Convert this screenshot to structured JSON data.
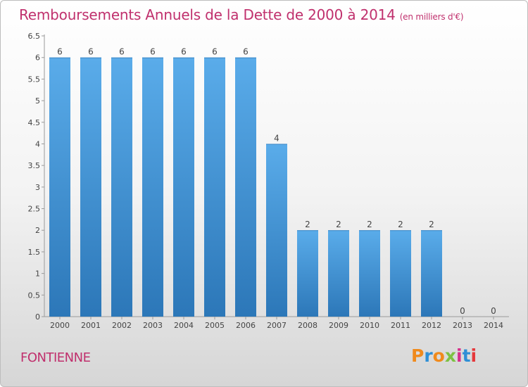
{
  "header": {
    "title": "Remboursements Annuels de la Dette de 2000 à 2014",
    "unit": "(en milliers d'€)"
  },
  "footer": {
    "commune": "FONTIENNE",
    "logo_text": "Proxiti"
  },
  "colors": {
    "accent": "#c0306d",
    "bar_top": "#5aacea",
    "bar_bottom": "#2c77b8",
    "logo": [
      "#f08a1c",
      "#2e8fd6",
      "#f08a1c",
      "#7cc142",
      "#d62f8a",
      "#2e8fd6",
      "#e5383b"
    ]
  },
  "chart_data": {
    "type": "bar",
    "title": "Remboursements Annuels de la Dette de 2000 à 2014",
    "subtitle": "(en milliers d'€)",
    "xlabel": "",
    "ylabel": "",
    "categories": [
      "2000",
      "2001",
      "2002",
      "2003",
      "2004",
      "2005",
      "2006",
      "2007",
      "2008",
      "2009",
      "2010",
      "2011",
      "2012",
      "2013",
      "2014"
    ],
    "values": [
      6,
      6,
      6,
      6,
      6,
      6,
      6,
      4,
      2,
      2,
      2,
      2,
      2,
      0,
      0
    ],
    "data_labels": [
      "6",
      "6",
      "6",
      "6",
      "6",
      "6",
      "6",
      "4",
      "2",
      "2",
      "2",
      "2",
      "2",
      "0",
      "0"
    ],
    "ylim": [
      0,
      6.5
    ],
    "yticks": [
      0,
      0.5,
      1,
      1.5,
      2,
      2.5,
      3,
      3.5,
      4,
      4.5,
      5,
      5.5,
      6,
      6.5
    ],
    "ytick_labels": [
      "0",
      "0.5",
      "1",
      "1.5",
      "2",
      "2.5",
      "3",
      "3.5",
      "4",
      "4.5",
      "5",
      "5.5",
      "6",
      "6.5"
    ],
    "grid": false,
    "legend": "none"
  }
}
